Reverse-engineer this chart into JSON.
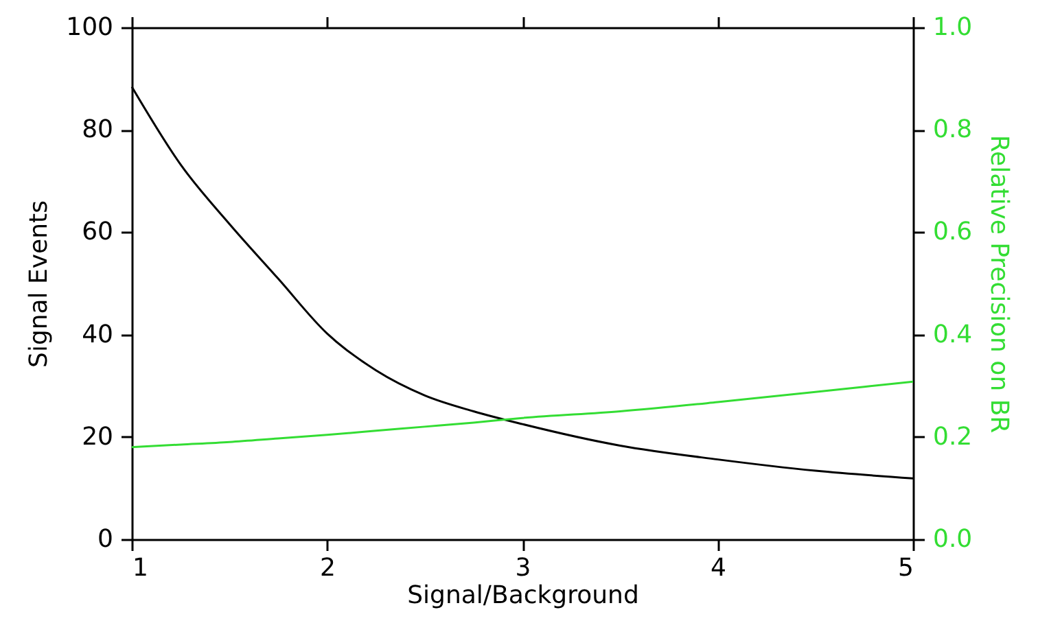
{
  "chart_data": {
    "type": "line",
    "xlabel": "Signal/Background",
    "ylabel": "Signal Events",
    "y2label": "Relative Precision on BR",
    "x": [
      1,
      1.25,
      1.5,
      1.75,
      2,
      2.25,
      2.5,
      2.75,
      3,
      3.5,
      4,
      4.5,
      5
    ],
    "series": [
      {
        "color": "#000000",
        "values": [
          88.4,
          73.2,
          61.6,
          50.9,
          40.2,
          33,
          28.1,
          25,
          22.5,
          18.3,
          15.6,
          13.4,
          11.9
        ]
      },
      {
        "color": "#33dd33",
        "axis": "y2",
        "values": [
          0.18,
          0.185,
          0.19,
          0.197,
          0.204,
          0.212,
          0.22,
          0.228,
          0.237,
          0.25,
          0.268,
          0.288,
          0.308
        ]
      }
    ],
    "xlim": [
      1,
      5
    ],
    "xticks": [
      1,
      2,
      3,
      4,
      5
    ],
    "ylim": [
      0,
      100
    ],
    "yticks": [
      0,
      20,
      40,
      60,
      80,
      100
    ],
    "y2lim": [
      0,
      1
    ],
    "y2ticks": [
      {
        "value": 0,
        "label": "0.0"
      },
      {
        "value": 0.2,
        "label": "0.2"
      },
      {
        "value": 0.4,
        "label": "0.4"
      },
      {
        "value": 0.6,
        "label": "0.6"
      },
      {
        "value": 0.8,
        "label": "0.8"
      },
      {
        "value": 1,
        "label": "1.0"
      }
    ],
    "grid": false,
    "marker": "none",
    "line_style": "solid"
  }
}
